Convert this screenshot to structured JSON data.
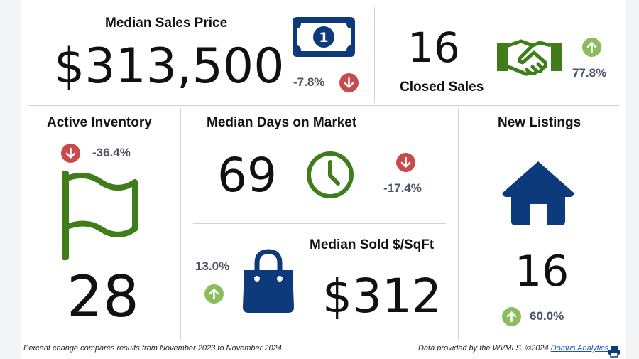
{
  "colors": {
    "down": "#c94a4a",
    "up": "#8bbd5f",
    "navy": "#0d3a7a",
    "green": "#3f7d1a",
    "text": "#111111",
    "muted": "#4b5563"
  },
  "median_sales_price": {
    "title": "Median Sales Price",
    "value": "$313,500",
    "change": "-7.8%",
    "direction": "down",
    "icon": "dollar-bill-icon"
  },
  "closed_sales": {
    "title": "Closed Sales",
    "value": "16",
    "change": "77.8%",
    "direction": "up",
    "icon": "handshake-icon"
  },
  "active_inventory": {
    "title": "Active Inventory",
    "value": "28",
    "change": "-36.4%",
    "direction": "down",
    "icon": "flag-icon"
  },
  "median_days_on_market": {
    "title": "Median Days on Market",
    "value": "69",
    "change": "-17.4%",
    "direction": "down",
    "icon": "clock-icon"
  },
  "median_sold_per_sqft": {
    "title": "Median Sold $/SqFt",
    "value": "$312",
    "change": "13.0%",
    "direction": "up",
    "icon": "shopping-bag-icon"
  },
  "new_listings": {
    "title": "New Listings",
    "value": "16",
    "change": "60.0%",
    "direction": "up",
    "icon": "house-icon"
  },
  "footer": {
    "note": "Percent change compares results from November 2023 to November 2024",
    "source": "Data provided by the WVMLS. ©2024",
    "link": "Domus Analytics",
    "print_icon": "printer-icon"
  }
}
